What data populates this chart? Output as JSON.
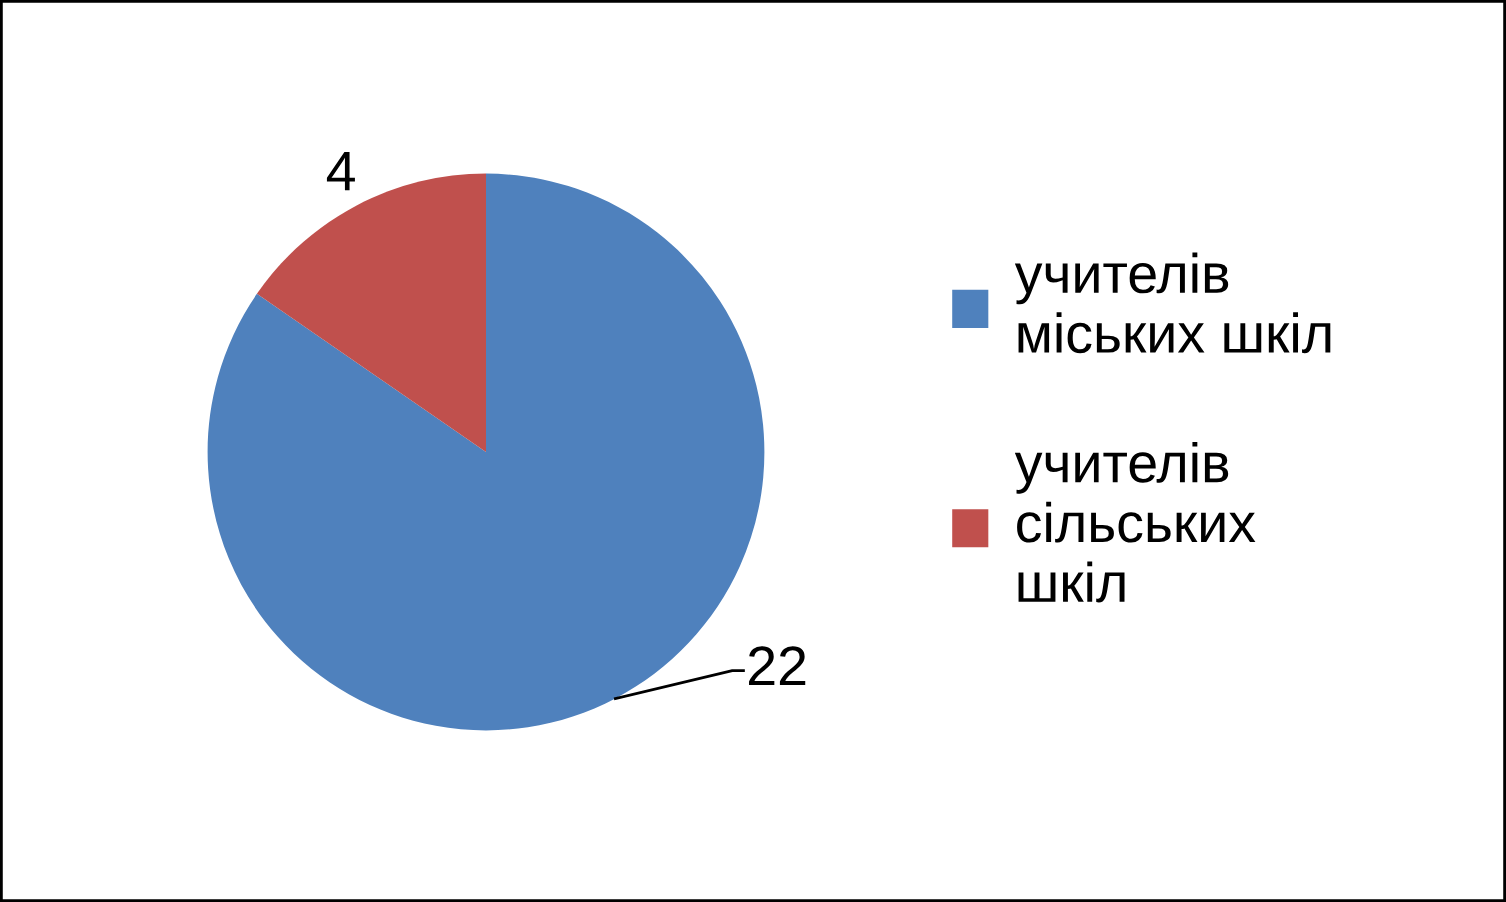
{
  "chart_data": {
    "type": "pie",
    "categories": [
      "учителів міських шкіл",
      "учителів сільських шкіл"
    ],
    "values": [
      22,
      4
    ],
    "colors": [
      "#4f81bd",
      "#c0504d"
    ],
    "data_labels": true,
    "legend": "right"
  }
}
